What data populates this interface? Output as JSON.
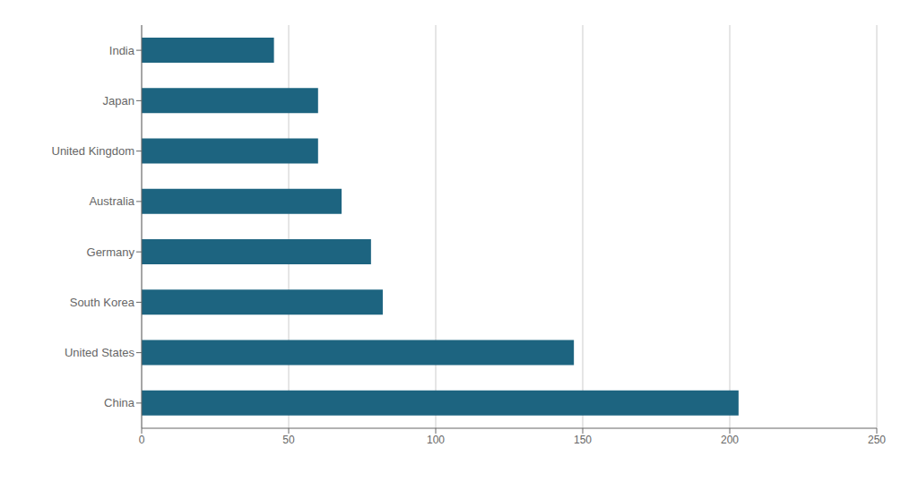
{
  "chart_data": {
    "type": "bar",
    "orientation": "horizontal",
    "categories": [
      "China",
      "United States",
      "South Korea",
      "Germany",
      "Australia",
      "United Kingdom",
      "Japan",
      "India"
    ],
    "values": [
      203,
      147,
      82,
      78,
      68,
      60,
      60,
      45
    ],
    "color": "#1d6480",
    "xlim": [
      0,
      250
    ],
    "xticks": [
      0,
      50,
      100,
      150,
      200,
      250
    ],
    "grid": true
  }
}
